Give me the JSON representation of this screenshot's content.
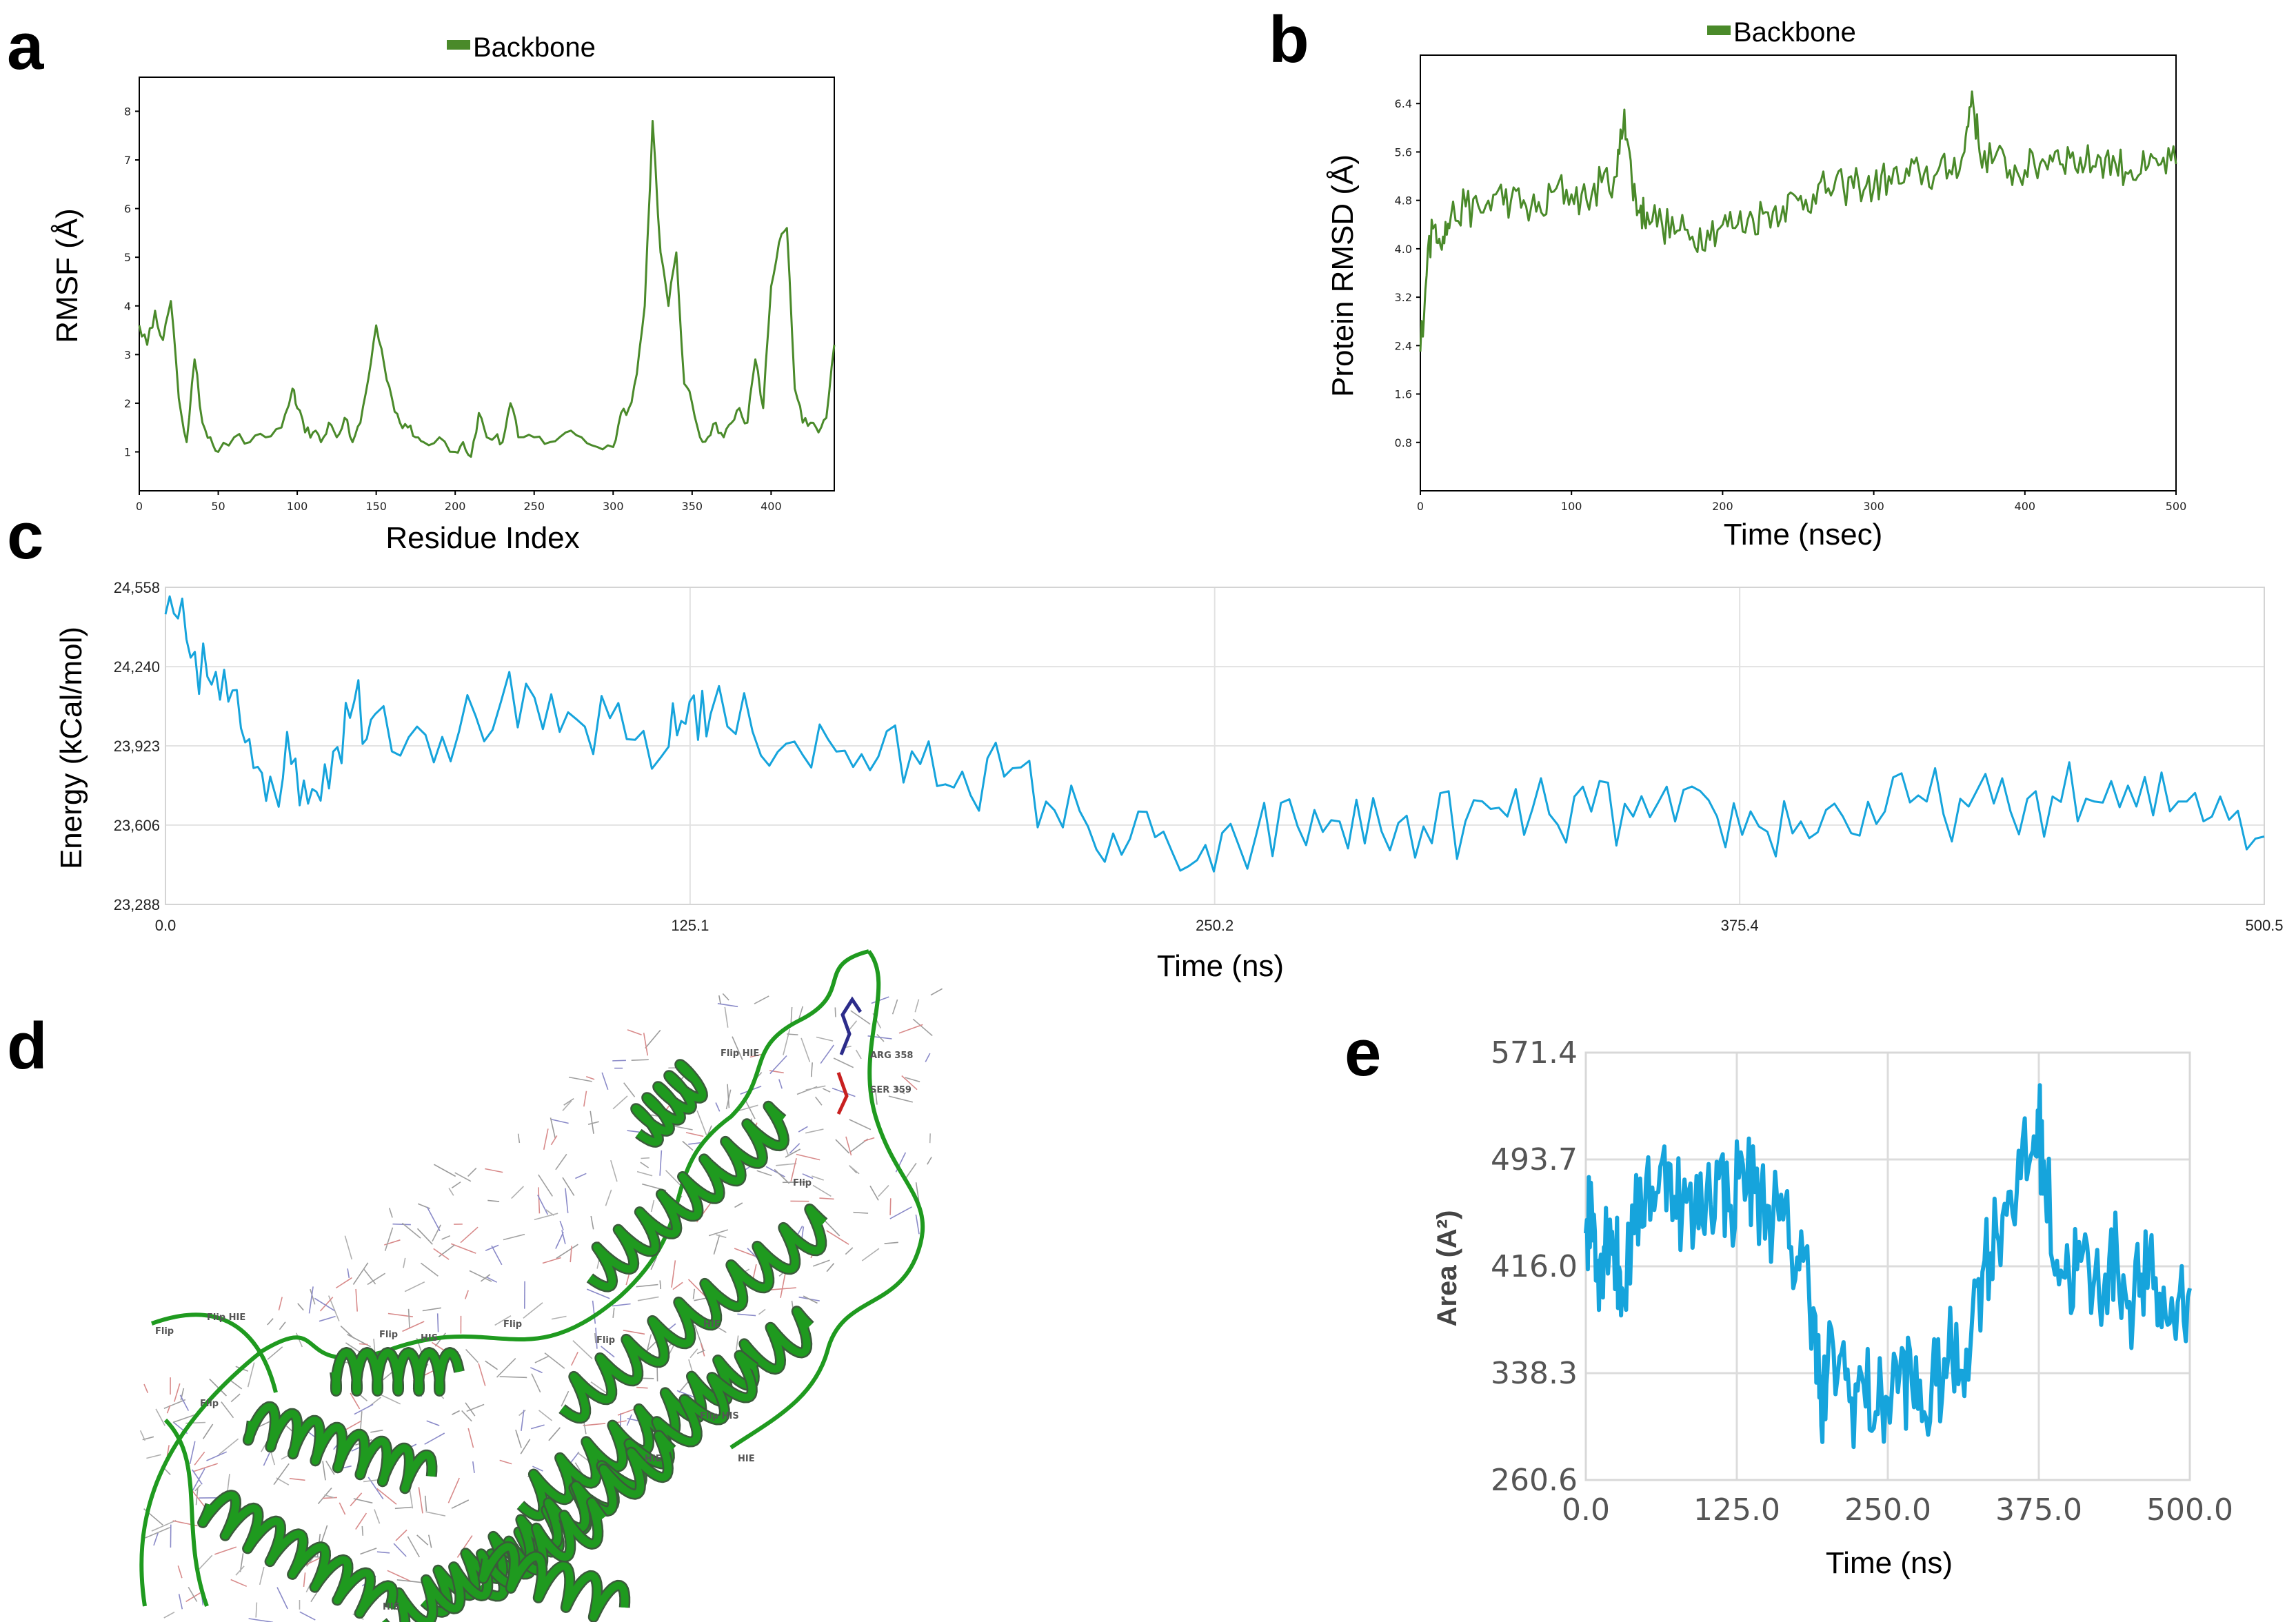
{
  "panels": {
    "a": "a",
    "b": "b",
    "c": "c",
    "d": "d",
    "e": "e"
  },
  "colors": {
    "green_series": "#4a8a2a",
    "blue_series": "#16a4dc",
    "protein_ribbon": "#1f9a1f"
  },
  "structure": {
    "labels": [
      "Flip HIE",
      "ARG 358",
      "SER 359",
      "Flip",
      "Flip HIE",
      "Flip",
      "HIS",
      "Flip",
      "HIE",
      "Flip",
      "Flip",
      "Flip HIS",
      "HIE",
      "HIE",
      "Flip",
      "HIS"
    ]
  },
  "chart_data": [
    {
      "id": "a",
      "type": "line",
      "title": "",
      "legend": "Backbone",
      "xlabel": "Residue Index",
      "ylabel": "RMSF (Å)",
      "xlim": [
        0,
        440
      ],
      "ylim": [
        0.2,
        8.7
      ],
      "xticks": [
        0,
        50,
        100,
        150,
        200,
        250,
        300,
        350,
        400
      ],
      "yticks": [
        1,
        2,
        3,
        4,
        5,
        6,
        7,
        8
      ],
      "x": [
        0,
        5,
        10,
        15,
        20,
        25,
        30,
        35,
        40,
        45,
        50,
        60,
        70,
        80,
        90,
        97,
        100,
        105,
        110,
        115,
        120,
        125,
        130,
        135,
        140,
        145,
        150,
        155,
        160,
        165,
        170,
        175,
        180,
        190,
        200,
        205,
        210,
        215,
        220,
        225,
        230,
        235,
        240,
        250,
        260,
        270,
        280,
        290,
        300,
        305,
        310,
        315,
        320,
        325,
        330,
        335,
        340,
        345,
        350,
        355,
        360,
        365,
        370,
        375,
        380,
        385,
        390,
        395,
        400,
        405,
        410,
        415,
        420,
        425,
        430,
        435,
        440
      ],
      "values": [
        3.6,
        3.2,
        3.9,
        3.3,
        4.1,
        2.1,
        1.2,
        2.9,
        1.6,
        1.3,
        1.0,
        1.3,
        1.2,
        1.3,
        1.5,
        2.3,
        1.9,
        1.4,
        1.4,
        1.2,
        1.6,
        1.3,
        1.7,
        1.2,
        1.6,
        2.5,
        3.6,
        2.8,
        2.1,
        1.6,
        1.5,
        1.3,
        1.2,
        1.3,
        1.0,
        1.2,
        0.9,
        1.8,
        1.3,
        1.3,
        1.2,
        2.0,
        1.3,
        1.3,
        1.2,
        1.4,
        1.3,
        1.1,
        1.1,
        1.8,
        1.9,
        2.6,
        4.0,
        7.8,
        5.1,
        4.0,
        5.1,
        2.4,
        2.0,
        1.3,
        1.3,
        1.6,
        1.3,
        1.6,
        1.9,
        1.6,
        2.9,
        1.9,
        4.4,
        5.3,
        5.6,
        2.3,
        1.6,
        1.6,
        1.4,
        1.7,
        3.2
      ]
    },
    {
      "id": "b",
      "type": "line",
      "title": "",
      "legend": "Backbone",
      "xlabel": "Time (nsec)",
      "ylabel": "Protein RMSD (Å)",
      "xlim": [
        0,
        500
      ],
      "ylim": [
        0,
        7.2
      ],
      "xticks": [
        0,
        100,
        200,
        300,
        400,
        500
      ],
      "yticks": [
        0.8,
        1.6,
        2.4,
        3.2,
        4.0,
        4.8,
        5.6,
        6.4
      ],
      "x": [
        0,
        5,
        10,
        15,
        20,
        30,
        40,
        50,
        60,
        70,
        80,
        90,
        100,
        110,
        120,
        130,
        135,
        140,
        145,
        150,
        160,
        170,
        180,
        190,
        200,
        210,
        220,
        230,
        240,
        250,
        260,
        270,
        280,
        290,
        300,
        310,
        320,
        330,
        340,
        350,
        360,
        365,
        370,
        380,
        390,
        400,
        410,
        420,
        430,
        440,
        450,
        460,
        470,
        480,
        490,
        500
      ],
      "values": [
        2.3,
        4.0,
        4.4,
        4.2,
        4.5,
        4.7,
        4.6,
        4.9,
        4.8,
        4.7,
        4.6,
        5.0,
        4.9,
        4.8,
        5.1,
        5.2,
        6.3,
        5.1,
        4.6,
        4.6,
        4.4,
        4.3,
        4.2,
        4.3,
        4.4,
        4.4,
        4.5,
        4.6,
        4.7,
        4.8,
        4.9,
        5.0,
        5.0,
        5.1,
        5.0,
        5.2,
        5.1,
        5.3,
        5.2,
        5.3,
        5.6,
        6.6,
        5.6,
        5.5,
        5.3,
        5.3,
        5.4,
        5.6,
        5.5,
        5.4,
        5.5,
        5.4,
        5.3,
        5.3,
        5.4,
        5.4
      ]
    },
    {
      "id": "c",
      "type": "line",
      "title": "",
      "xlabel": "Time (ns)",
      "ylabel": "Energy (kCal/mol)",
      "xlim": [
        0.0,
        500.5
      ],
      "ylim": [
        23288,
        24558
      ],
      "xtick_labels": [
        "0.0",
        "125.1",
        "250.2",
        "375.4",
        "500.5"
      ],
      "xticks": [
        0.0,
        125.1,
        250.2,
        375.4,
        500.5
      ],
      "ytick_labels": [
        "24,558",
        "24,240",
        "23,923",
        "23,606",
        "23,288"
      ],
      "yticks": [
        24558,
        24240,
        23923,
        23606,
        23288
      ],
      "x": [
        0,
        5,
        10,
        15,
        20,
        25,
        30,
        35,
        40,
        45,
        50,
        60,
        70,
        80,
        90,
        100,
        110,
        120,
        125,
        130,
        140,
        150,
        160,
        170,
        180,
        190,
        200,
        210,
        220,
        230,
        240,
        250,
        260,
        270,
        280,
        290,
        300,
        310,
        320,
        330,
        340,
        350,
        360,
        370,
        380,
        390,
        400,
        410,
        420,
        430,
        440,
        450,
        460,
        470,
        480,
        490,
        500.5
      ],
      "values": [
        24450,
        24350,
        24200,
        24100,
        23950,
        23800,
        23850,
        23750,
        23900,
        24100,
        24050,
        24000,
        23980,
        24100,
        23990,
        24000,
        23950,
        23920,
        24100,
        24050,
        23980,
        23940,
        23900,
        23880,
        23850,
        23820,
        23800,
        23700,
        23600,
        23550,
        23500,
        23420,
        23560,
        23600,
        23620,
        23580,
        23600,
        23620,
        23640,
        23650,
        23660,
        23640,
        23620,
        23640,
        23600,
        23620,
        23640,
        23660,
        23700,
        23680,
        23660,
        23720,
        23700,
        23680,
        23700,
        23720,
        23560
      ]
    },
    {
      "id": "e",
      "type": "line",
      "title": "",
      "xlabel": "Time (ns)",
      "ylabel": "Area (A²)",
      "xlim": [
        0.0,
        500.0
      ],
      "ylim": [
        260.6,
        571.4
      ],
      "xtick_labels": [
        "0.0",
        "125.0",
        "250.0",
        "375.0",
        "500.0"
      ],
      "xticks": [
        0.0,
        125.0,
        250.0,
        375.0,
        500.0
      ],
      "ytick_labels": [
        "571.4",
        "493.7",
        "416.0",
        "338.3",
        "260.6"
      ],
      "yticks": [
        571.4,
        493.7,
        416.0,
        338.3,
        260.6
      ],
      "x": [
        0,
        5,
        10,
        15,
        20,
        25,
        30,
        40,
        50,
        60,
        70,
        80,
        90,
        100,
        110,
        120,
        130,
        140,
        150,
        160,
        170,
        180,
        190,
        195,
        200,
        210,
        220,
        230,
        240,
        250,
        260,
        270,
        280,
        290,
        300,
        310,
        320,
        330,
        340,
        350,
        360,
        370,
        375,
        380,
        390,
        400,
        410,
        420,
        430,
        440,
        450,
        460,
        470,
        480,
        490,
        500
      ],
      "values": [
        440,
        460,
        420,
        430,
        450,
        420,
        400,
        440,
        480,
        470,
        490,
        460,
        450,
        470,
        480,
        460,
        490,
        470,
        460,
        450,
        430,
        420,
        380,
        300,
        340,
        350,
        320,
        330,
        310,
        320,
        340,
        330,
        310,
        330,
        350,
        340,
        380,
        420,
        440,
        470,
        480,
        500,
        520,
        480,
        420,
        410,
        420,
        400,
        410,
        420,
        390,
        410,
        400,
        380,
        390,
        400
      ]
    }
  ]
}
